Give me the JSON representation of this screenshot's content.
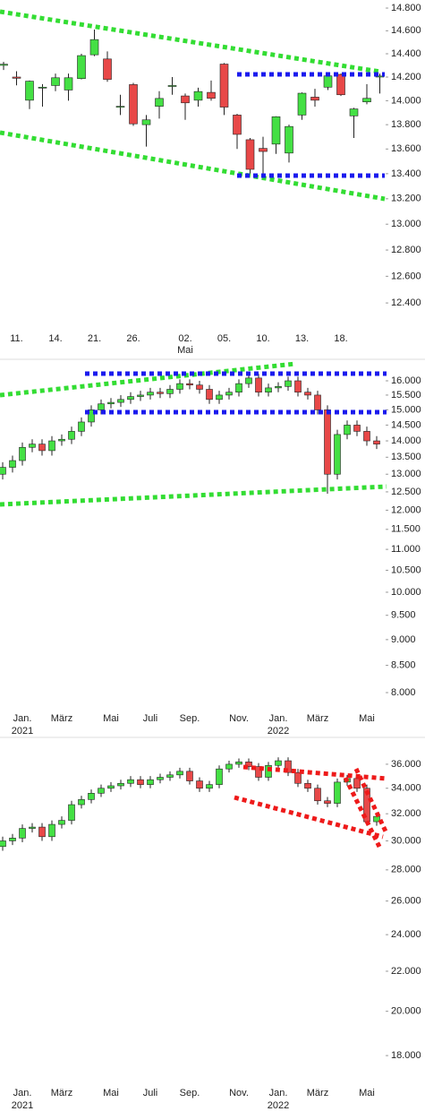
{
  "chart_data": [
    {
      "type": "candlestick",
      "log_scale": true,
      "up_color": "#44e044",
      "down_color": "#e84848",
      "categories": [
        null,
        "11.",
        null,
        null,
        "14.",
        null,
        null,
        "21.",
        null,
        null,
        "26.",
        null,
        null,
        null,
        "02.",
        null,
        null,
        "05.",
        null,
        null,
        "10.",
        null,
        null,
        "13.",
        null,
        null,
        "18.",
        null,
        null,
        null
      ],
      "category_sublabels": [
        null,
        null,
        null,
        null,
        null,
        null,
        null,
        null,
        null,
        null,
        null,
        null,
        null,
        null,
        "Mai",
        null,
        null,
        null,
        null,
        null,
        null,
        null,
        null,
        null,
        null,
        null,
        null,
        null,
        null,
        null
      ],
      "open": [
        14300,
        14200,
        14004,
        14110,
        14128,
        14090,
        14187,
        14391,
        14355,
        13950,
        14136,
        13800,
        13953,
        14120,
        14040,
        14004,
        14070,
        14311,
        13880,
        13676,
        13605,
        13640,
        13567,
        13880,
        14030,
        14114,
        14223,
        13873,
        13990,
        14200
      ],
      "high": [
        14330,
        14250,
        14170,
        14140,
        14230,
        14230,
        14400,
        14610,
        14420,
        14050,
        14150,
        13880,
        14080,
        14200,
        14060,
        14110,
        14170,
        14320,
        13890,
        13690,
        13700,
        13870,
        13800,
        14070,
        14100,
        14220,
        14230,
        13940,
        14140,
        14230
      ],
      "low": [
        14260,
        14130,
        13930,
        13950,
        14080,
        14000,
        14180,
        14380,
        14160,
        13880,
        13790,
        13620,
        13850,
        14050,
        13840,
        13950,
        14000,
        13880,
        13600,
        13400,
        13390,
        13560,
        13490,
        13840,
        13950,
        14090,
        14040,
        13690,
        13970,
        14060
      ],
      "close": [
        14310,
        14190,
        14165,
        14114,
        14194,
        14194,
        14384,
        14523,
        14180,
        13953,
        13807,
        13840,
        14019,
        14128,
        13982,
        14077,
        14020,
        13946,
        13720,
        13435,
        13580,
        13866,
        13785,
        14063,
        14004,
        14210,
        14050,
        13931,
        14020,
        14209
      ],
      "ylim": [
        12222,
        14872
      ],
      "yticks": [
        {
          "value": 12400,
          "label": "12.400"
        },
        {
          "value": 12600,
          "label": "12.600"
        },
        {
          "value": 12800,
          "label": "12.800"
        },
        {
          "value": 13000,
          "label": "13.000"
        },
        {
          "value": 13200,
          "label": "13.200"
        },
        {
          "value": 13400,
          "label": "13.400"
        },
        {
          "value": 13600,
          "label": "13.600"
        },
        {
          "value": 13800,
          "label": "13.800"
        },
        {
          "value": 14000,
          "label": "14.000"
        },
        {
          "value": 14200,
          "label": "14.200"
        },
        {
          "value": 14400,
          "label": "14.400"
        },
        {
          "value": 14600,
          "label": "14.600"
        },
        {
          "value": 14800,
          "label": "14.800"
        }
      ]
    },
    {
      "type": "candlestick",
      "log_scale": true,
      "up_color": "#44e044",
      "down_color": "#e84848",
      "categories": [
        null,
        null,
        "Jan.",
        null,
        null,
        null,
        "März",
        null,
        null,
        null,
        null,
        "Mai",
        null,
        null,
        null,
        "Juli",
        null,
        null,
        null,
        "Sep.",
        null,
        null,
        null,
        null,
        "Nov.",
        null,
        null,
        null,
        "Jan.",
        null,
        null,
        null,
        "März",
        null,
        null,
        null,
        null,
        "Mai",
        null
      ],
      "category_sublabels": [
        null,
        null,
        "2021",
        null,
        null,
        null,
        null,
        null,
        null,
        null,
        null,
        null,
        null,
        null,
        null,
        null,
        null,
        null,
        null,
        null,
        null,
        null,
        null,
        null,
        null,
        null,
        null,
        null,
        "2022",
        null,
        null,
        null,
        null,
        null,
        null,
        null,
        null,
        null,
        null
      ],
      "open": [
        13000,
        13200,
        13400,
        13800,
        13900,
        13700,
        14000,
        14050,
        14300,
        14600,
        15000,
        15200,
        15250,
        15350,
        15450,
        15500,
        15600,
        15550,
        15700,
        15900,
        15850,
        15700,
        15350,
        15500,
        15600,
        15900,
        16100,
        15600,
        15750,
        15800,
        16000,
        15600,
        15500,
        15000,
        13000,
        14200,
        14500,
        14300,
        14000
      ],
      "high": [
        13350,
        13550,
        13950,
        14050,
        14050,
        14150,
        14200,
        14450,
        14750,
        15150,
        15350,
        15400,
        15500,
        15600,
        15650,
        15750,
        15750,
        15850,
        16050,
        16050,
        16000,
        15850,
        15650,
        15750,
        16050,
        16250,
        16250,
        15900,
        15950,
        16150,
        16150,
        15750,
        15650,
        15150,
        14350,
        14650,
        14650,
        14450,
        14150
      ],
      "low": [
        12850,
        13050,
        13250,
        13650,
        13550,
        13550,
        13850,
        13900,
        14150,
        14450,
        14850,
        15050,
        15100,
        15200,
        15300,
        15350,
        15400,
        15400,
        15550,
        15700,
        15550,
        15200,
        15200,
        15350,
        15450,
        15750,
        15450,
        15450,
        15600,
        15650,
        15450,
        15350,
        14850,
        12450,
        12850,
        14050,
        14150,
        13850,
        13750
      ],
      "close": [
        13200,
        13400,
        13800,
        13900,
        13700,
        14000,
        14050,
        14300,
        14600,
        15000,
        15200,
        15250,
        15350,
        15450,
        15500,
        15600,
        15550,
        15700,
        15900,
        15850,
        15700,
        15350,
        15500,
        15600,
        15900,
        16100,
        15600,
        15750,
        15800,
        16000,
        15600,
        15500,
        15000,
        13000,
        14200,
        14500,
        14300,
        14000,
        13900
      ],
      "ylim": [
        7358,
        16551
      ],
      "yticks": [
        {
          "value": 8000,
          "label": "8.000"
        },
        {
          "value": 8500,
          "label": "8.500"
        },
        {
          "value": 9000,
          "label": "9.000"
        },
        {
          "value": 9500,
          "label": "9.500"
        },
        {
          "value": 10000,
          "label": "10.000"
        },
        {
          "value": 10500,
          "label": "10.500"
        },
        {
          "value": 11000,
          "label": "11.000"
        },
        {
          "value": 11500,
          "label": "11.500"
        },
        {
          "value": 12000,
          "label": "12.000"
        },
        {
          "value": 12500,
          "label": "12.500"
        },
        {
          "value": 13000,
          "label": "13.000"
        },
        {
          "value": 13500,
          "label": "13.500"
        },
        {
          "value": 14000,
          "label": "14.000"
        },
        {
          "value": 14500,
          "label": "14.500"
        },
        {
          "value": 15000,
          "label": "15.000"
        },
        {
          "value": 15500,
          "label": "15.500"
        },
        {
          "value": 16000,
          "label": "16.000"
        }
      ]
    },
    {
      "type": "candlestick",
      "log_scale": true,
      "up_color": "#44e044",
      "down_color": "#e84848",
      "categories": [
        null,
        null,
        "Jan.",
        null,
        null,
        null,
        "März",
        null,
        null,
        null,
        null,
        "Mai",
        null,
        null,
        null,
        "Juli",
        null,
        null,
        null,
        "Sep.",
        null,
        null,
        null,
        null,
        "Nov.",
        null,
        null,
        null,
        "Jan.",
        null,
        null,
        null,
        "März",
        null,
        null,
        null,
        null,
        "Mai",
        null
      ],
      "category_sublabels": [
        null,
        null,
        "2021",
        null,
        null,
        null,
        null,
        null,
        null,
        null,
        null,
        null,
        null,
        null,
        null,
        null,
        null,
        null,
        null,
        null,
        null,
        null,
        null,
        null,
        null,
        null,
        null,
        null,
        "2022",
        null,
        null,
        null,
        null,
        null,
        null,
        null,
        null,
        null,
        null
      ],
      "open": [
        29600,
        30000,
        30200,
        30900,
        31000,
        30300,
        31200,
        31500,
        32700,
        33100,
        33600,
        34000,
        34200,
        34400,
        34700,
        34300,
        34700,
        34900,
        35100,
        35400,
        34600,
        34000,
        34300,
        35600,
        36000,
        36200,
        35800,
        34900,
        35900,
        36300,
        35300,
        34400,
        34000,
        33000,
        32800,
        34500,
        34800,
        34000,
        31400
      ],
      "high": [
        30300,
        30500,
        31200,
        31300,
        31300,
        31500,
        31800,
        33000,
        33400,
        33900,
        34300,
        34500,
        34700,
        35000,
        35000,
        35000,
        35200,
        35400,
        35700,
        35700,
        34900,
        34600,
        35900,
        36300,
        36500,
        36500,
        36100,
        36200,
        36600,
        36600,
        35600,
        34700,
        34300,
        33300,
        34800,
        35100,
        35100,
        34300,
        32100
      ],
      "low": [
        29300,
        29700,
        29900,
        30600,
        30000,
        30000,
        30900,
        31200,
        32400,
        32800,
        33300,
        33700,
        33900,
        34100,
        34000,
        34000,
        34400,
        34600,
        34800,
        34300,
        33700,
        33700,
        34000,
        35300,
        35700,
        35500,
        34600,
        34600,
        35600,
        35000,
        34100,
        33700,
        32700,
        32500,
        32500,
        34200,
        33700,
        31100,
        31100
      ],
      "close": [
        30000,
        30200,
        30900,
        31000,
        30300,
        31200,
        31500,
        32700,
        33100,
        33600,
        34000,
        34200,
        34400,
        34700,
        34300,
        34700,
        34900,
        35100,
        35400,
        34600,
        34000,
        34300,
        35600,
        36000,
        36200,
        35800,
        34900,
        35900,
        36300,
        35300,
        34400,
        34000,
        33000,
        32800,
        34500,
        34800,
        34000,
        31400,
        31800
      ],
      "ylim": [
        15944,
        37966
      ],
      "yticks": [
        {
          "value": 18000,
          "label": "18.000"
        },
        {
          "value": 20000,
          "label": "20.000"
        },
        {
          "value": 22000,
          "label": "22.000"
        },
        {
          "value": 24000,
          "label": "24.000"
        },
        {
          "value": 26000,
          "label": "26.000"
        },
        {
          "value": 28000,
          "label": "28.000"
        },
        {
          "value": 30000,
          "label": "30.000"
        },
        {
          "value": 32000,
          "label": "32.000"
        },
        {
          "value": 34000,
          "label": "34.000"
        },
        {
          "value": 36000,
          "label": "36.000"
        }
      ]
    }
  ]
}
